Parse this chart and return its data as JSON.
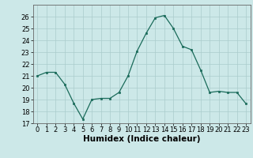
{
  "x": [
    0,
    1,
    2,
    3,
    4,
    5,
    6,
    7,
    8,
    9,
    10,
    11,
    12,
    13,
    14,
    15,
    16,
    17,
    18,
    19,
    20,
    21,
    22,
    23
  ],
  "y": [
    21.0,
    21.3,
    21.3,
    20.3,
    18.7,
    17.35,
    19.0,
    19.1,
    19.1,
    19.6,
    21.0,
    23.1,
    24.6,
    25.9,
    26.1,
    25.0,
    23.5,
    23.2,
    21.5,
    19.6,
    19.7,
    19.6,
    19.6,
    18.65
  ],
  "xlabel": "Humidex (Indice chaleur)",
  "ylim": [
    17,
    27
  ],
  "xlim": [
    -0.5,
    23.5
  ],
  "yticks": [
    17,
    18,
    19,
    20,
    21,
    22,
    23,
    24,
    25,
    26
  ],
  "xticks": [
    0,
    1,
    2,
    3,
    4,
    5,
    6,
    7,
    8,
    9,
    10,
    11,
    12,
    13,
    14,
    15,
    16,
    17,
    18,
    19,
    20,
    21,
    22,
    23
  ],
  "line_color": "#1a6b5a",
  "marker_color": "#1a6b5a",
  "bg_color": "#cce8e8",
  "grid_color": "#aacccc",
  "label_fontsize": 7.5,
  "tick_fontsize": 6.0
}
